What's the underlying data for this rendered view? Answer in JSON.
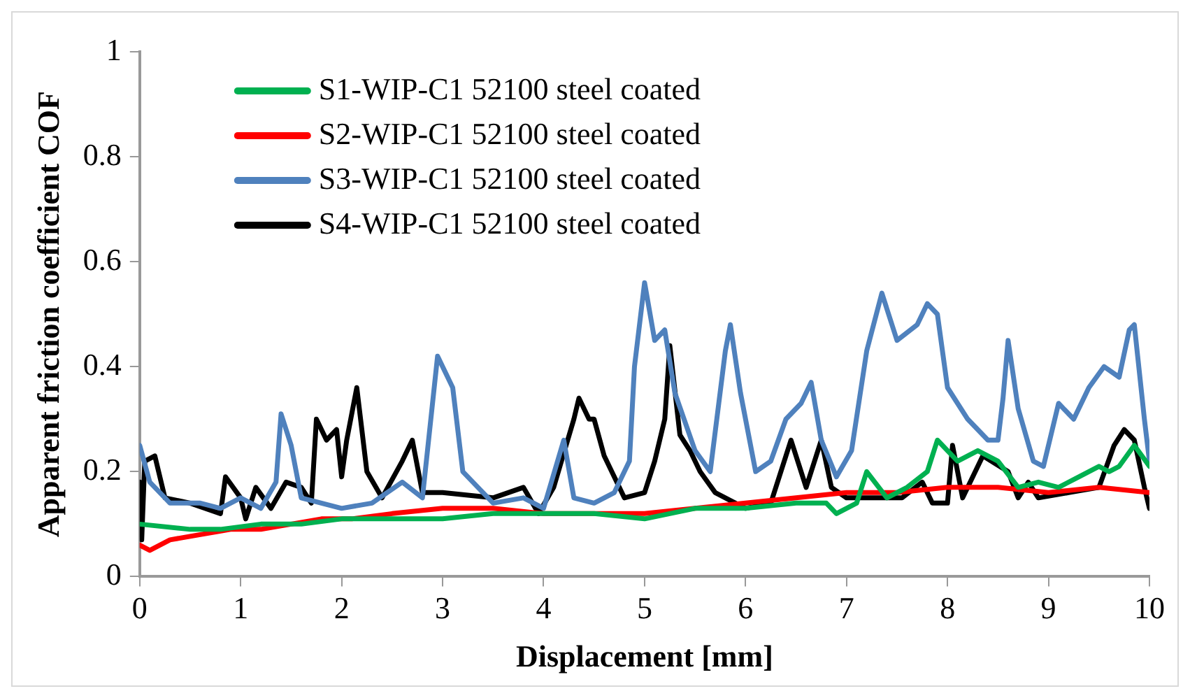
{
  "chart_data": {
    "type": "line",
    "xlabel": "Displacement [mm]",
    "ylabel": "Apparent friction coefficient COF",
    "xlim": [
      0,
      10
    ],
    "xticks": [
      0,
      1,
      2,
      3,
      4,
      5,
      6,
      7,
      8,
      9,
      10
    ],
    "ylim": [
      0,
      1
    ],
    "yticks": [
      0,
      0.2,
      0.4,
      0.6,
      0.8,
      1
    ],
    "grid": false,
    "legend": "top left",
    "marker": "none",
    "line_style": "solid",
    "series": [
      {
        "name": "S1-WIP-C1 52100 steel coated",
        "color": "#00b050",
        "x": [
          0,
          0.5,
          0.8,
          1.2,
          1.6,
          2,
          2.5,
          3,
          3.5,
          4,
          4.5,
          5,
          5.5,
          6,
          6.5,
          6.8,
          6.9,
          7.1,
          7.2,
          7.4,
          7.6,
          7.8,
          7.9,
          8.1,
          8.3,
          8.5,
          8.7,
          8.9,
          9.1,
          9.3,
          9.5,
          9.6,
          9.7,
          9.85,
          10
        ],
        "values": [
          0.1,
          0.09,
          0.09,
          0.1,
          0.1,
          0.11,
          0.11,
          0.11,
          0.12,
          0.12,
          0.12,
          0.11,
          0.13,
          0.13,
          0.14,
          0.14,
          0.12,
          0.14,
          0.2,
          0.15,
          0.17,
          0.2,
          0.26,
          0.22,
          0.24,
          0.22,
          0.17,
          0.18,
          0.17,
          0.19,
          0.21,
          0.2,
          0.21,
          0.25,
          0.21
        ]
      },
      {
        "name": "S2-WIP-C1 52100 steel coated",
        "color": "#ff0000",
        "x": [
          0,
          0.1,
          0.3,
          0.6,
          0.9,
          1.2,
          1.5,
          1.8,
          2.1,
          2.5,
          3,
          3.5,
          4,
          4.5,
          5,
          5.5,
          6,
          6.5,
          7,
          7.5,
          8,
          8.5,
          9,
          9.5,
          10
        ],
        "values": [
          0.06,
          0.05,
          0.07,
          0.08,
          0.09,
          0.09,
          0.1,
          0.11,
          0.11,
          0.12,
          0.13,
          0.13,
          0.12,
          0.12,
          0.12,
          0.13,
          0.14,
          0.15,
          0.16,
          0.16,
          0.17,
          0.17,
          0.16,
          0.17,
          0.16
        ]
      },
      {
        "name": "S3-WIP-C1 52100 steel coated",
        "color": "#4f81bd",
        "x": [
          0,
          0.1,
          0.3,
          0.6,
          0.8,
          1,
          1.2,
          1.35,
          1.4,
          1.5,
          1.6,
          2,
          2.3,
          2.6,
          2.8,
          2.95,
          3.1,
          3.2,
          3.5,
          3.8,
          4,
          4.2,
          4.3,
          4.5,
          4.7,
          4.85,
          4.9,
          5,
          5.1,
          5.2,
          5.3,
          5.5,
          5.65,
          5.8,
          5.85,
          5.95,
          6.1,
          6.25,
          6.4,
          6.55,
          6.65,
          6.75,
          6.9,
          7.05,
          7.2,
          7.35,
          7.5,
          7.7,
          7.8,
          7.9,
          8,
          8.2,
          8.4,
          8.5,
          8.55,
          8.6,
          8.7,
          8.85,
          8.95,
          9.1,
          9.25,
          9.4,
          9.55,
          9.7,
          9.8,
          9.85,
          9.95,
          10
        ],
        "values": [
          0.25,
          0.18,
          0.14,
          0.14,
          0.13,
          0.15,
          0.13,
          0.18,
          0.31,
          0.25,
          0.15,
          0.13,
          0.14,
          0.18,
          0.15,
          0.42,
          0.36,
          0.2,
          0.14,
          0.15,
          0.13,
          0.26,
          0.15,
          0.14,
          0.16,
          0.22,
          0.4,
          0.56,
          0.45,
          0.47,
          0.35,
          0.24,
          0.2,
          0.43,
          0.48,
          0.35,
          0.2,
          0.22,
          0.3,
          0.33,
          0.37,
          0.26,
          0.19,
          0.24,
          0.43,
          0.54,
          0.45,
          0.48,
          0.52,
          0.5,
          0.36,
          0.3,
          0.26,
          0.26,
          0.34,
          0.45,
          0.32,
          0.22,
          0.21,
          0.33,
          0.3,
          0.36,
          0.4,
          0.38,
          0.47,
          0.48,
          0.3,
          0.22
        ]
      },
      {
        "name": "S4-WIP-C1 52100 steel coated",
        "color": "#000000",
        "x": [
          0,
          0.02,
          0.05,
          0.15,
          0.25,
          0.5,
          0.8,
          0.85,
          1,
          1.05,
          1.15,
          1.3,
          1.45,
          1.6,
          1.7,
          1.75,
          1.85,
          1.95,
          2,
          2.05,
          2.15,
          2.25,
          2.4,
          2.6,
          2.7,
          2.8,
          3,
          3.5,
          3.8,
          3.95,
          4.1,
          4.3,
          4.35,
          4.45,
          4.5,
          4.6,
          4.8,
          5,
          5.1,
          5.2,
          5.25,
          5.35,
          5.45,
          5.55,
          5.7,
          6,
          6.25,
          6.45,
          6.6,
          6.75,
          6.85,
          7,
          7.3,
          7.55,
          7.75,
          7.85,
          8,
          8.05,
          8.15,
          8.35,
          8.6,
          8.7,
          8.8,
          8.9,
          9.2,
          9.5,
          9.65,
          9.75,
          9.85,
          9.95,
          10
        ],
        "values": [
          0.18,
          0.07,
          0.22,
          0.23,
          0.15,
          0.14,
          0.12,
          0.19,
          0.15,
          0.11,
          0.17,
          0.13,
          0.18,
          0.17,
          0.14,
          0.3,
          0.26,
          0.28,
          0.19,
          0.26,
          0.36,
          0.2,
          0.15,
          0.22,
          0.26,
          0.16,
          0.16,
          0.15,
          0.17,
          0.12,
          0.17,
          0.3,
          0.34,
          0.3,
          0.3,
          0.23,
          0.15,
          0.16,
          0.22,
          0.3,
          0.44,
          0.27,
          0.24,
          0.2,
          0.16,
          0.13,
          0.14,
          0.26,
          0.17,
          0.26,
          0.17,
          0.15,
          0.15,
          0.15,
          0.18,
          0.14,
          0.14,
          0.25,
          0.15,
          0.23,
          0.2,
          0.15,
          0.18,
          0.15,
          0.16,
          0.17,
          0.25,
          0.28,
          0.26,
          0.17,
          0.13
        ]
      }
    ]
  }
}
